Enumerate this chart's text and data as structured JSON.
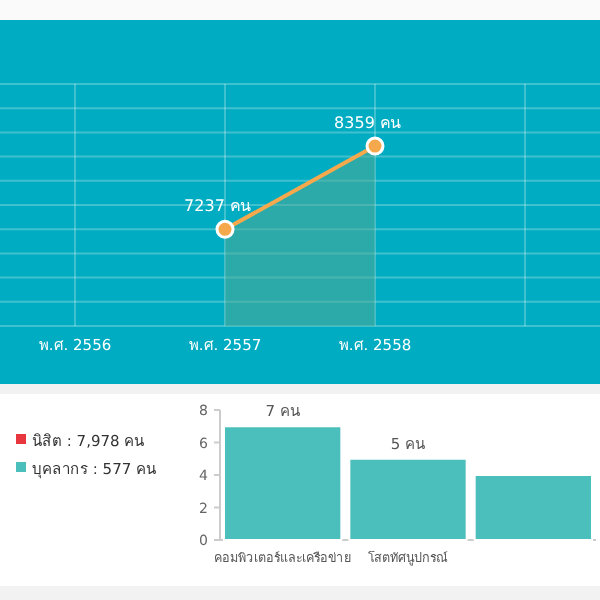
{
  "chart_data": [
    {
      "type": "area",
      "categories": [
        "พ.ศ. 2556",
        "พ.ศ. 2557",
        "พ.ศ. 2558",
        null
      ],
      "series": [
        {
          "color": "#f6a94c",
          "values": [
            null,
            7237,
            8359,
            null
          ],
          "value_labels": [
            null,
            "7237 คน",
            "8359 คน",
            null
          ]
        }
      ],
      "grid": true,
      "marker": "circle",
      "tick_labels": "x"
    },
    {
      "type": "other",
      "series": [
        {
          "name": "นิสิต : 7,978 คน",
          "color": "#e8363f"
        },
        {
          "name": "บุคลากร : 577 คน",
          "color": "#4bbfbb"
        }
      ]
    },
    {
      "type": "bar",
      "categories": [
        "คอมพิวเตอร์และเครือข่าย",
        "โสตทัศนูปกรณ์",
        null
      ],
      "values": [
        7,
        5,
        4
      ],
      "color": "#4bbfbb",
      "value_labels": [
        "7 คน",
        "5 คน",
        null
      ],
      "ylim": [
        0,
        8
      ],
      "yticks": [
        0,
        2,
        4,
        6,
        8
      ]
    }
  ]
}
